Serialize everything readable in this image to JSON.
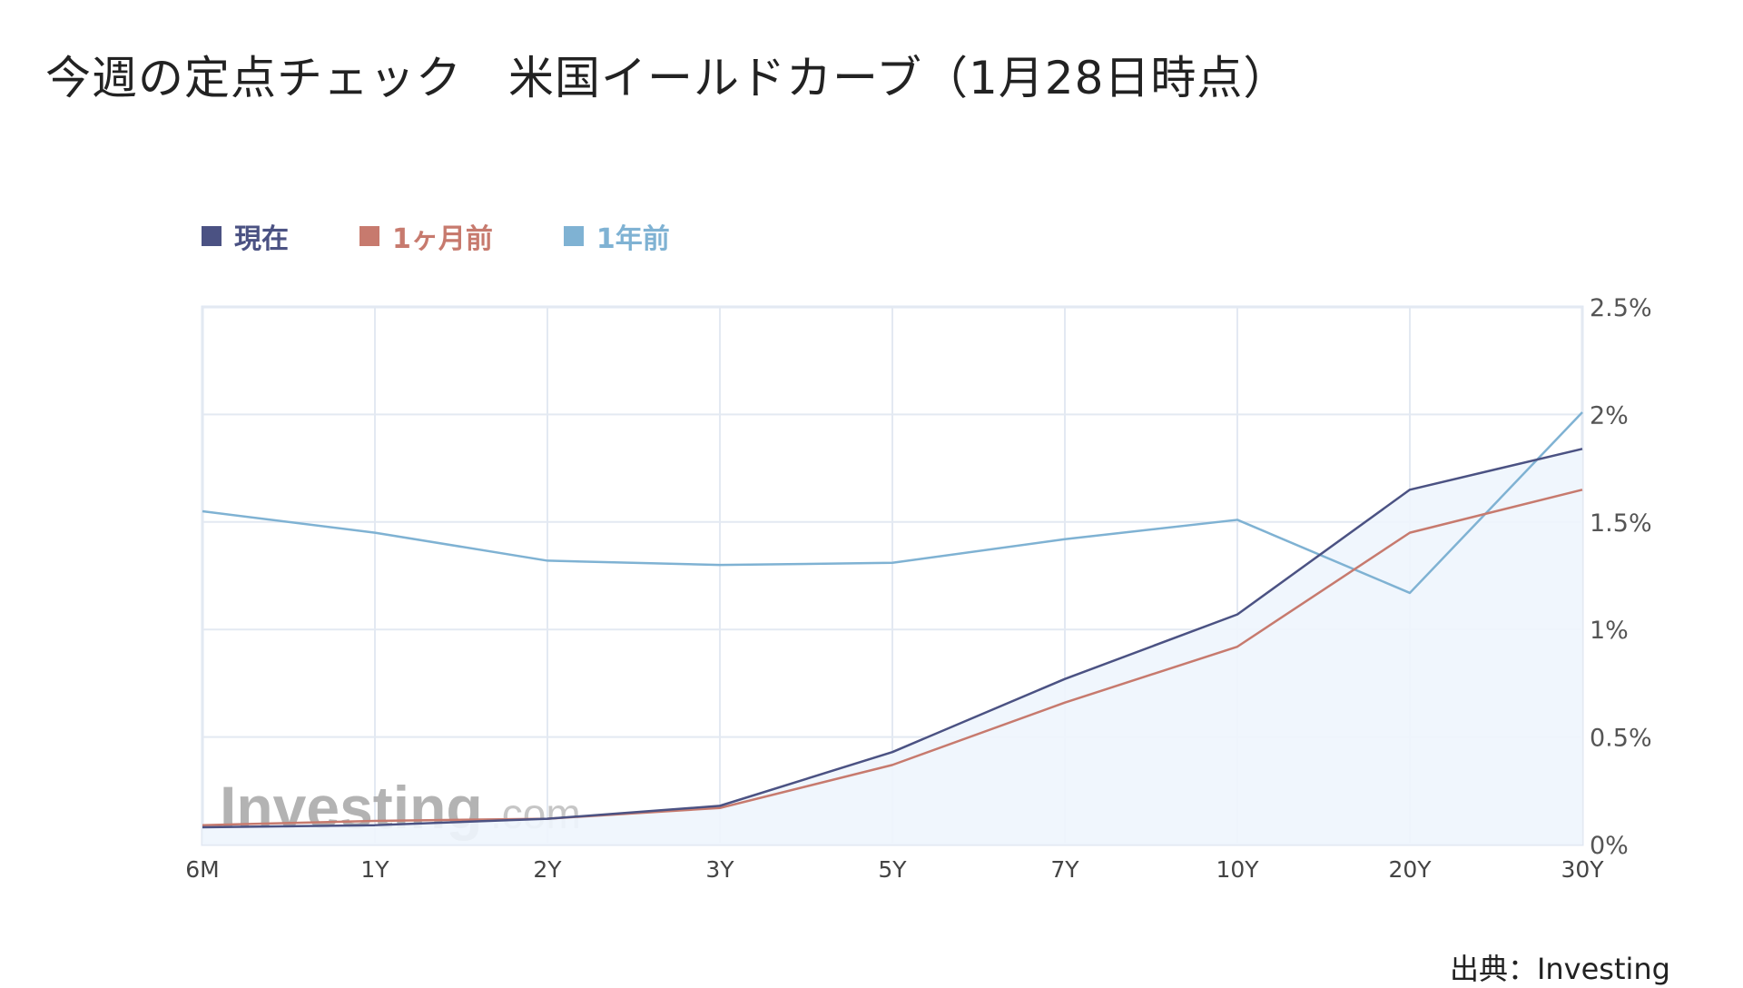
{
  "title": "今週の定点チェック　米国イールドカーブ（1月28日時点）",
  "source": "出典：Investing",
  "watermark": {
    "main": "Investing",
    "suffix": ".com"
  },
  "colors": {
    "current": "#4b5283",
    "one_month": "#c77a6e",
    "one_year": "#7fb2d3",
    "fill": "#eef5fd",
    "grid": "#e3e9f2"
  },
  "chart_data": {
    "type": "line",
    "categories": [
      "6M",
      "1Y",
      "2Y",
      "3Y",
      "5Y",
      "7Y",
      "10Y",
      "20Y",
      "30Y"
    ],
    "series": [
      {
        "name": "現在",
        "values": [
          0.08,
          0.09,
          0.12,
          0.18,
          0.43,
          0.77,
          1.07,
          1.65,
          1.84
        ]
      },
      {
        "name": "1ヶ月前",
        "values": [
          0.09,
          0.11,
          0.12,
          0.17,
          0.37,
          0.66,
          0.92,
          1.45,
          1.65
        ]
      },
      {
        "name": "1年前",
        "values": [
          1.55,
          1.45,
          1.32,
          1.3,
          1.31,
          1.42,
          1.51,
          1.17,
          2.01
        ]
      }
    ],
    "y_ticks": [
      "0%",
      "0.5%",
      "1%",
      "1.5%",
      "2%",
      "2.5%"
    ],
    "ylim": [
      0,
      2.5
    ],
    "grid": true,
    "legend_position": "top-left",
    "y_axis_position": "right"
  }
}
